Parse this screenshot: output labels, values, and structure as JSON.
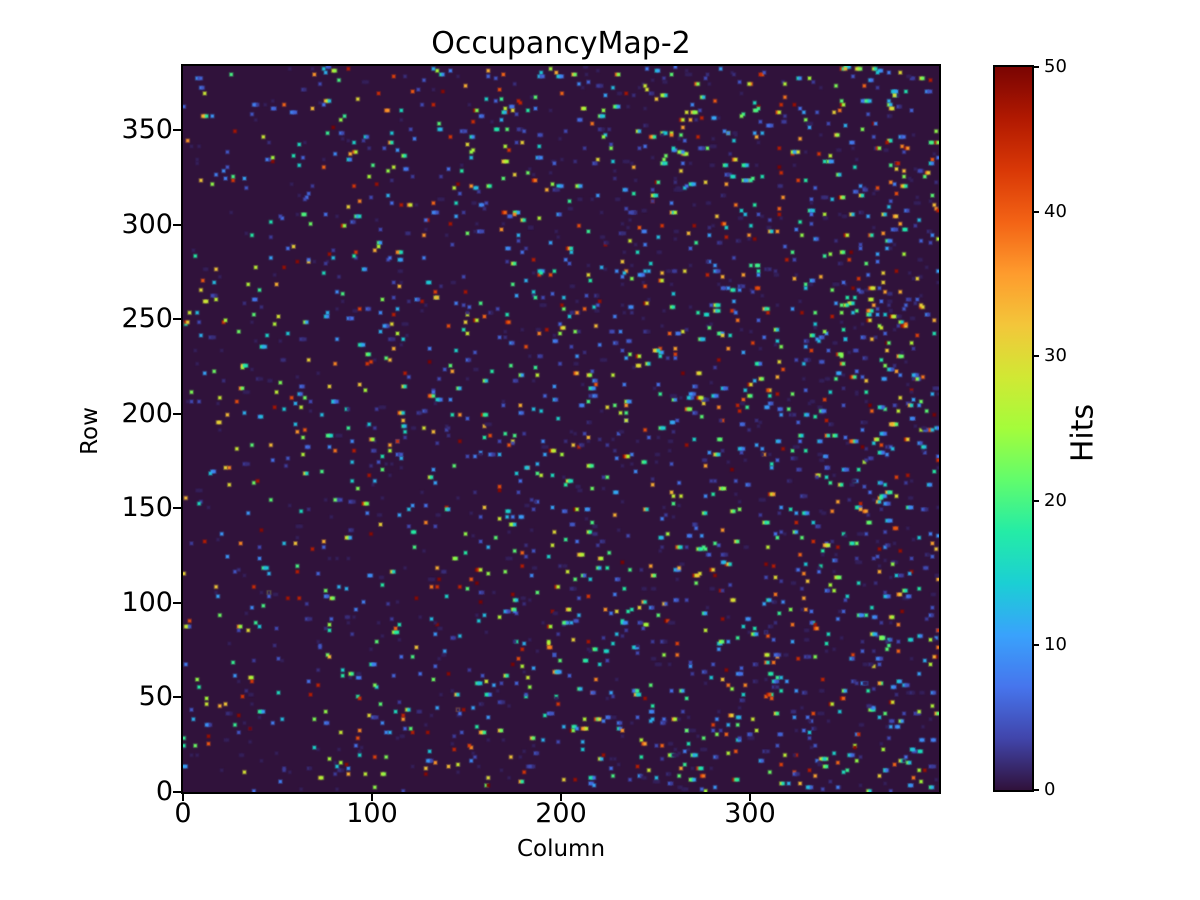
{
  "figure": {
    "background_color": "#ffffff"
  },
  "chart_data": {
    "type": "heatmap",
    "title": "OccupancyMap-2",
    "xlabel": "Column",
    "ylabel": "Row",
    "colorbar_label": "Hits",
    "cols": 400,
    "rows": 384,
    "xlim": [
      0,
      400
    ],
    "ylim": [
      0,
      384
    ],
    "x_ticks": [
      0,
      100,
      200,
      300
    ],
    "y_ticks": [
      0,
      50,
      100,
      150,
      200,
      250,
      300,
      350
    ],
    "colorbar_ticks": [
      0,
      10,
      20,
      30,
      40,
      50
    ],
    "vmin": 0,
    "vmax": 50,
    "grid": false,
    "colormap": "turbo",
    "colormap_stops": [
      "#30123b",
      "#4145ab",
      "#4675ed",
      "#39a2fc",
      "#1bcfd4",
      "#24eca6",
      "#61fc6c",
      "#a4fc3b",
      "#d1e834",
      "#f3c63a",
      "#fe9b2d",
      "#f36315",
      "#d93806",
      "#b11901",
      "#7a0402"
    ],
    "zero_value_color": "#30123b",
    "hits": {
      "description": "sparse random single-pixel hits, density increasing toward high column numbers, occasional 2-3 pixel horizontal clusters",
      "count": 2750,
      "seed": 42,
      "value_min": 1,
      "value_max": 50,
      "value_distribution_exponent": 2.2,
      "right_side_density_ratio": 2.5,
      "cluster_fraction_base": 0.15,
      "cluster_fraction_right_extra": 0.25
    }
  }
}
